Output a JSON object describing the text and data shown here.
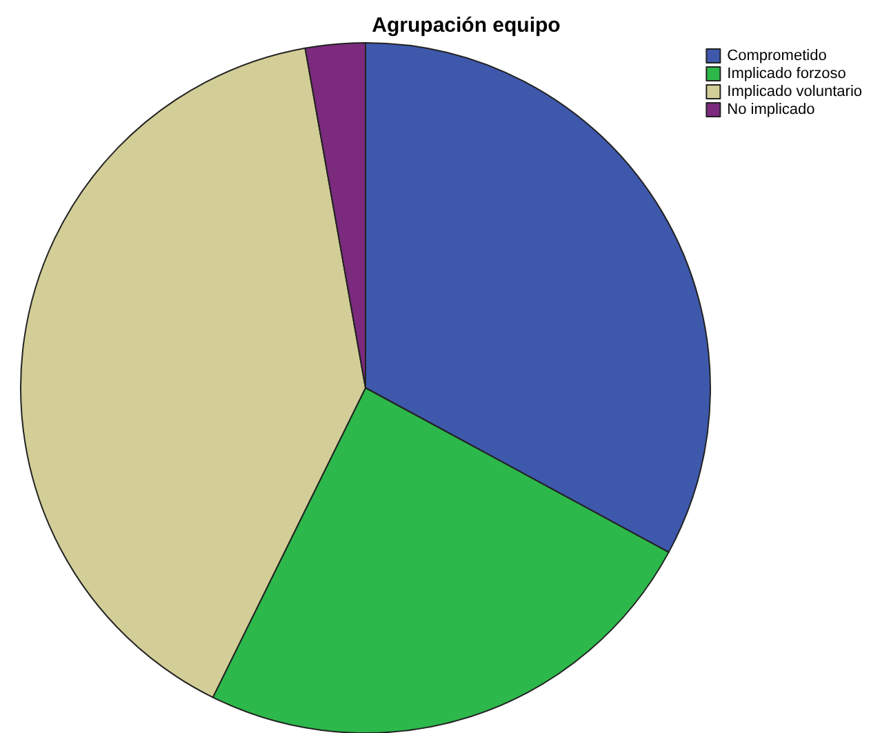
{
  "chart_data": {
    "type": "pie",
    "title": "Agrupación equipo",
    "categories": [
      "Comprometido",
      "Implicado forzoso",
      "Implicado voluntario",
      "No implicado"
    ],
    "values": [
      32.9,
      24.4,
      39.9,
      2.8
    ],
    "colors": [
      "#3e58ac",
      "#2db84b",
      "#d3ce97",
      "#7b2a7d"
    ],
    "legend": "top right"
  }
}
